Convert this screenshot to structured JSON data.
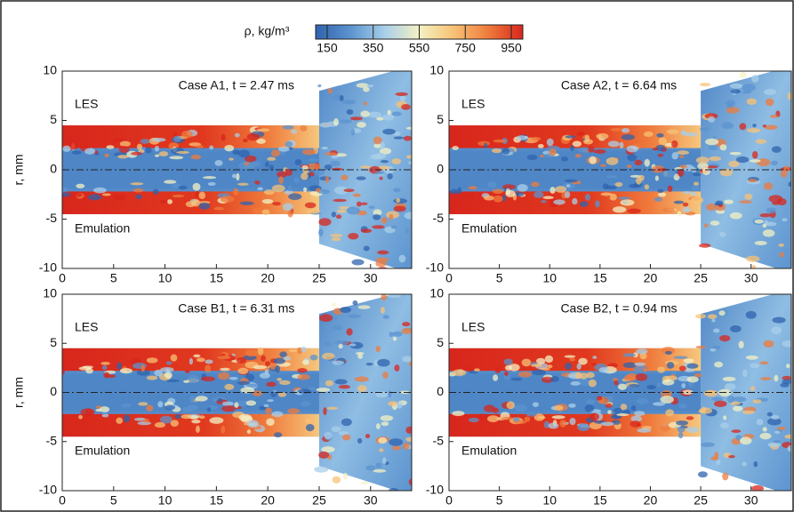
{
  "colorbar": {
    "label": "ρ, kg/m³",
    "lim": [
      100,
      1000
    ],
    "ticks": [
      150,
      350,
      550,
      750,
      950
    ],
    "colors": [
      "#2f63ae",
      "#5b93cf",
      "#a9cfe9",
      "#f4f1c4",
      "#f8c275",
      "#ef7b3c",
      "#d8261c"
    ]
  },
  "chart_data": [
    {
      "type": "contour",
      "title": "Case A1, t = 2.47 ms",
      "ylabel": "r, mm",
      "annotations": [
        "LES",
        "Emulation"
      ],
      "xlim": [
        0,
        34
      ],
      "ylim": [
        -10,
        10
      ],
      "xticks": [
        0,
        5,
        10,
        15,
        20,
        25,
        30
      ],
      "yticks": [
        -10,
        -5,
        0,
        5,
        10
      ]
    },
    {
      "type": "contour",
      "title": "Case A2, t = 6.64 ms",
      "annotations": [
        "LES",
        "Emulation"
      ],
      "xlim": [
        0,
        34
      ],
      "ylim": [
        -10,
        10
      ],
      "xticks": [
        0,
        5,
        10,
        15,
        20,
        25,
        30
      ],
      "yticks": [
        -10,
        -5,
        0,
        5,
        10
      ]
    },
    {
      "type": "contour",
      "title": "Case B1, t = 6.31 ms",
      "ylabel": "r, mm",
      "annotations": [
        "LES",
        "Emulation"
      ],
      "xlim": [
        0,
        34
      ],
      "ylim": [
        -10,
        10
      ],
      "xticks": [
        0,
        5,
        10,
        15,
        20,
        25,
        30
      ],
      "yticks": [
        -10,
        -5,
        0,
        5,
        10
      ]
    },
    {
      "type": "contour",
      "title": "Case B2, t = 0.94 ms",
      "annotations": [
        "LES",
        "Emulation"
      ],
      "xlim": [
        0,
        34
      ],
      "ylim": [
        -10,
        10
      ],
      "xticks": [
        0,
        5,
        10,
        15,
        20,
        25,
        30
      ],
      "yticks": [
        -10,
        -5,
        0,
        5,
        10
      ]
    }
  ]
}
